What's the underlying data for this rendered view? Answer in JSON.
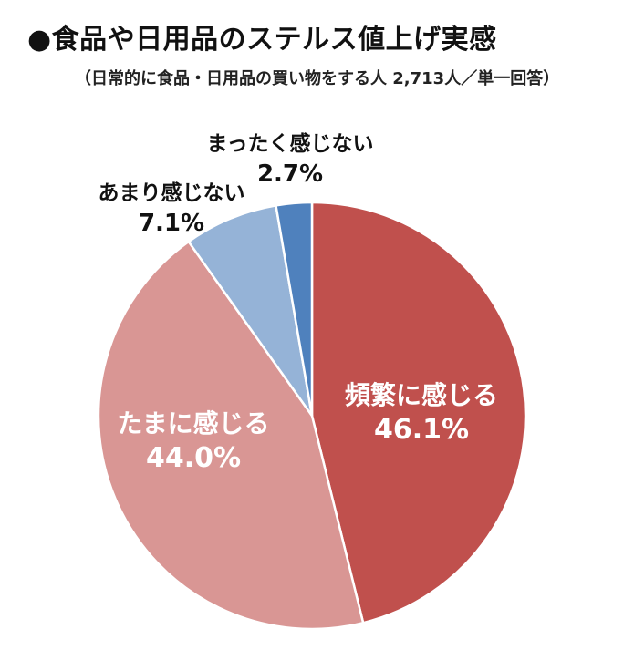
{
  "title": "●食品や日用品のステルス値上げ実感",
  "subtitle": "（日常的に食品・日用品の買い物をする人 2,713人／単一回答）",
  "chart_data": {
    "type": "pie",
    "title": "●食品や日用品のステルス値上げ実感",
    "subtitle": "（日常的に食品・日用品の買い物をする人 2,713人／単一回答）",
    "slices": [
      {
        "label": "頻繁に感じる",
        "value": 46.1,
        "value_label": "46.1%",
        "color": "#c0504d"
      },
      {
        "label": "たまに感じる",
        "value": 44.0,
        "value_label": "44.0%",
        "color": "#d99694"
      },
      {
        "label": "あまり感じない",
        "value": 7.1,
        "value_label": "7.1%",
        "color": "#95b3d7"
      },
      {
        "label": "まったく感じない",
        "value": 2.7,
        "value_label": "2.7%",
        "color": "#4f81bd"
      }
    ],
    "start": "12 o'clock",
    "direction": "clockwise",
    "legend": "none"
  }
}
